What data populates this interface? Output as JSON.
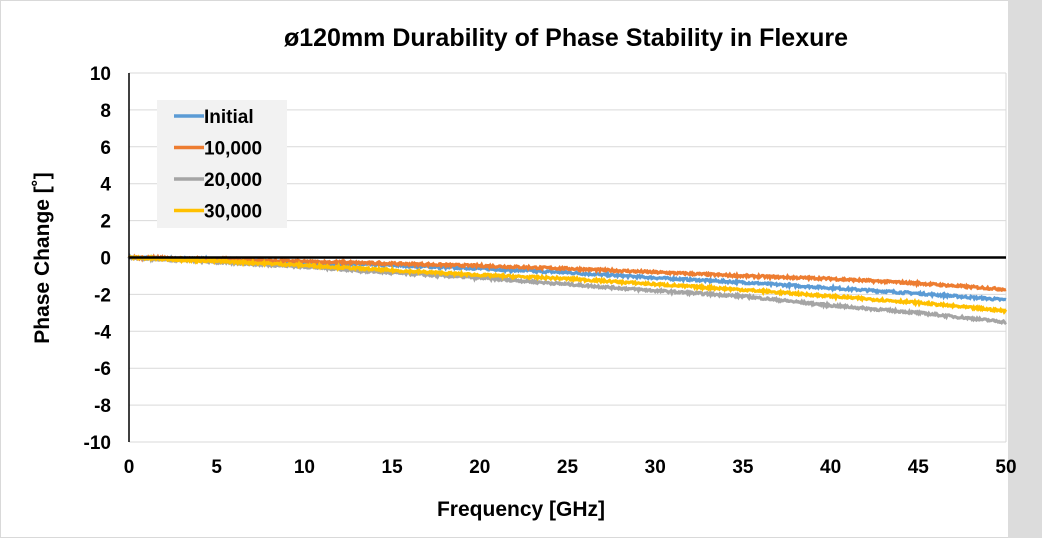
{
  "chart_data": {
    "type": "line",
    "title": "ø120mm Durability of Phase Stability in Flexure",
    "xlabel": "Frequency [GHz]",
    "ylabel": "Phase Change [˚]",
    "xlim": [
      0,
      50
    ],
    "ylim": [
      -10,
      10
    ],
    "xticks": [
      "0",
      "5",
      "10",
      "15",
      "20",
      "25",
      "30",
      "35",
      "40",
      "45",
      "50"
    ],
    "yticks": [
      "10",
      "8",
      "6",
      "4",
      "2",
      "0",
      "-2",
      "-4",
      "-6",
      "-8",
      "-10"
    ],
    "grid": true,
    "legend": "top-left",
    "x": [
      0,
      5,
      10,
      15,
      20,
      25,
      30,
      35,
      40,
      45,
      50
    ],
    "series": [
      {
        "name": "Initial",
        "color": "#5B9BD5",
        "values": [
          0,
          -0.12,
          -0.3,
          -0.42,
          -0.6,
          -0.82,
          -1.1,
          -1.35,
          -1.65,
          -1.95,
          -2.3
        ]
      },
      {
        "name": "10,000",
        "color": "#ED7D31",
        "values": [
          0,
          -0.1,
          -0.22,
          -0.33,
          -0.45,
          -0.6,
          -0.8,
          -1.0,
          -1.15,
          -1.4,
          -1.73
        ]
      },
      {
        "name": "20,000",
        "color": "#A5A5A5",
        "values": [
          0,
          -0.25,
          -0.5,
          -0.83,
          -1.1,
          -1.45,
          -1.8,
          -2.1,
          -2.6,
          -3.0,
          -3.5
        ]
      },
      {
        "name": "30,000",
        "color": "#FFC000",
        "values": [
          0,
          -0.2,
          -0.42,
          -0.7,
          -0.95,
          -1.15,
          -1.45,
          -1.75,
          -2.1,
          -2.45,
          -2.9
        ]
      }
    ]
  }
}
